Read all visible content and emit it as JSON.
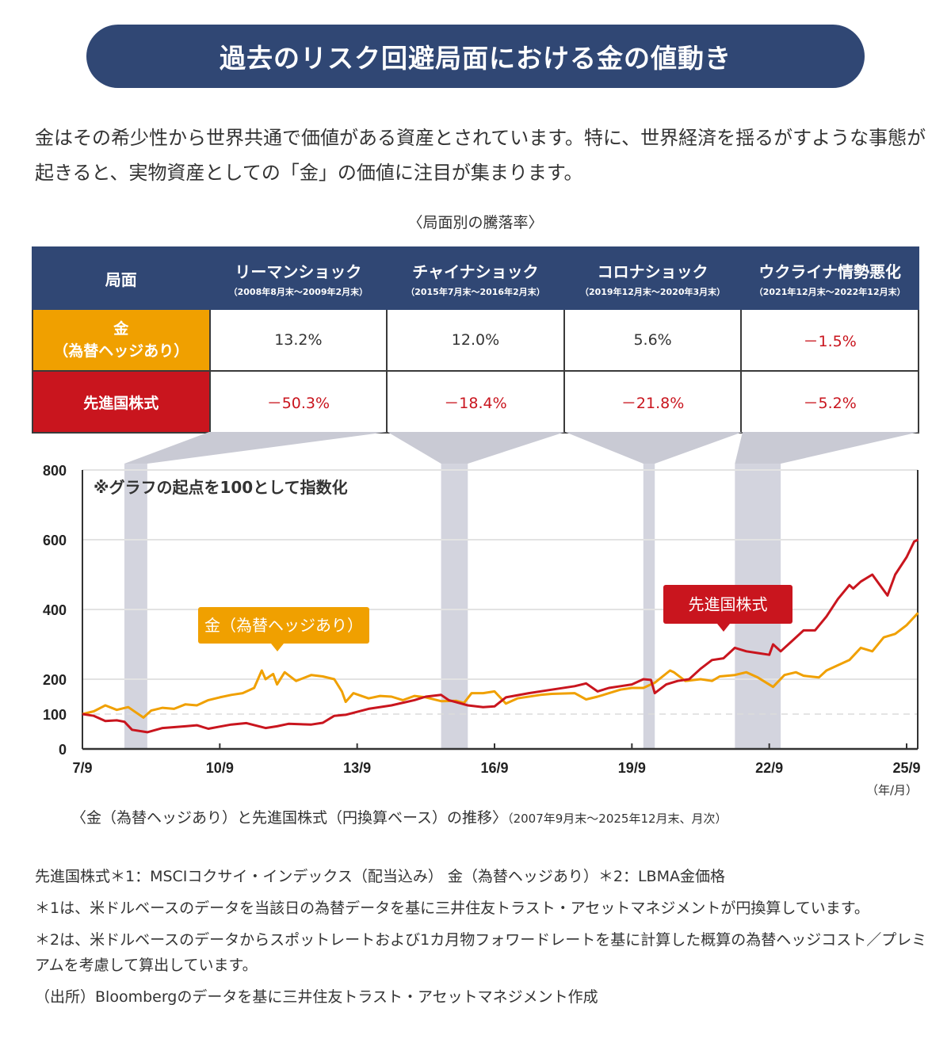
{
  "header": {
    "title": "過去のリスク回避局面における金の値動き"
  },
  "intro": {
    "text": "金はその希少性から世界共通で価値がある資産とされています。特に、世界経済を揺るがすような事態が起きると、実物資産としての「金」の価値に注目が集まります。"
  },
  "table": {
    "caption": "〈局面別の騰落率〉",
    "corner_label": "局面",
    "phases": [
      {
        "name": "リーマンショック",
        "period": "（2008年8月末～2009年2月末）"
      },
      {
        "name": "チャイナショック",
        "period": "（2015年7月末～2016年2月末）"
      },
      {
        "name": "コロナショック",
        "period": "（2019年12月末～2020年3月末）"
      },
      {
        "name": "ウクライナ情勢悪化",
        "period": "（2021年12月末～2022年12月末）"
      }
    ],
    "rows": [
      {
        "label_line1": "金",
        "label_line2": "（為替ヘッジあり）",
        "color": "#f0a000",
        "values": [
          "13.2%",
          "12.0%",
          "5.6%",
          "－1.5%"
        ],
        "negative": [
          false,
          false,
          false,
          true
        ]
      },
      {
        "label_line1": "先進国株式",
        "label_line2": "",
        "color": "#c9151e",
        "values": [
          "－50.3%",
          "－18.4%",
          "－21.8%",
          "－5.2%"
        ],
        "negative": [
          true,
          true,
          true,
          true
        ]
      }
    ]
  },
  "chart_data": {
    "type": "line",
    "title": "〈金（為替ヘッジあり）と先進国株式（円換算ベース）の推移〉",
    "subtitle": "（2007年9月末～2025年12月末、月次）",
    "annotation": "※グラフの起点を100として指数化",
    "xlabel": "（年/月）",
    "ylabel": "",
    "ylim": [
      0,
      800
    ],
    "yticks": [
      0,
      100,
      200,
      400,
      600,
      800
    ],
    "baseline": 100,
    "xlim": [
      "2007-09",
      "2025-12"
    ],
    "xticks": [
      {
        "date": "2007-09",
        "label": "7/9"
      },
      {
        "date": "2010-09",
        "label": "10/9"
      },
      {
        "date": "2013-09",
        "label": "13/9"
      },
      {
        "date": "2016-09",
        "label": "16/9"
      },
      {
        "date": "2019-09",
        "label": "19/9"
      },
      {
        "date": "2022-09",
        "label": "22/9"
      },
      {
        "date": "2025-09",
        "label": "25/9"
      }
    ],
    "grid": true,
    "shaded_periods": [
      {
        "start": "2008-08",
        "end": "2009-02",
        "label": "リーマンショック"
      },
      {
        "start": "2015-07",
        "end": "2016-02",
        "label": "チャイナショック"
      },
      {
        "start": "2019-12",
        "end": "2020-03",
        "label": "コロナショック"
      },
      {
        "start": "2021-12",
        "end": "2022-12",
        "label": "ウクライナ情勢悪化"
      }
    ],
    "series": [
      {
        "name": "金（為替ヘッジあり）",
        "color": "#f0a000",
        "label_position": "above-2011",
        "points": [
          [
            "2007-09",
            100
          ],
          [
            "2007-12",
            108
          ],
          [
            "2008-03",
            125
          ],
          [
            "2008-06",
            112
          ],
          [
            "2008-09",
            120
          ],
          [
            "2008-11",
            105
          ],
          [
            "2009-01",
            90
          ],
          [
            "2009-03",
            110
          ],
          [
            "2009-06",
            118
          ],
          [
            "2009-09",
            115
          ],
          [
            "2009-12",
            128
          ],
          [
            "2010-03",
            125
          ],
          [
            "2010-06",
            140
          ],
          [
            "2010-09",
            148
          ],
          [
            "2010-12",
            155
          ],
          [
            "2011-03",
            160
          ],
          [
            "2011-06",
            175
          ],
          [
            "2011-08",
            225
          ],
          [
            "2011-09",
            200
          ],
          [
            "2011-11",
            215
          ],
          [
            "2011-12",
            185
          ],
          [
            "2012-02",
            220
          ],
          [
            "2012-05",
            195
          ],
          [
            "2012-09",
            212
          ],
          [
            "2012-12",
            208
          ],
          [
            "2013-03",
            200
          ],
          [
            "2013-05",
            165
          ],
          [
            "2013-06",
            135
          ],
          [
            "2013-08",
            160
          ],
          [
            "2013-12",
            145
          ],
          [
            "2014-03",
            152
          ],
          [
            "2014-06",
            150
          ],
          [
            "2014-09",
            140
          ],
          [
            "2014-12",
            152
          ],
          [
            "2015-03",
            148
          ],
          [
            "2015-07",
            137
          ],
          [
            "2015-11",
            138
          ],
          [
            "2016-01",
            132
          ],
          [
            "2016-03",
            160
          ],
          [
            "2016-06",
            160
          ],
          [
            "2016-09",
            165
          ],
          [
            "2016-12",
            130
          ],
          [
            "2017-03",
            145
          ],
          [
            "2017-09",
            155
          ],
          [
            "2017-12",
            158
          ],
          [
            "2018-06",
            160
          ],
          [
            "2018-09",
            142
          ],
          [
            "2018-12",
            150
          ],
          [
            "2019-06",
            170
          ],
          [
            "2019-09",
            175
          ],
          [
            "2019-12",
            175
          ],
          [
            "2020-03",
            190
          ],
          [
            "2020-07",
            225
          ],
          [
            "2020-08",
            220
          ],
          [
            "2020-11",
            195
          ],
          [
            "2021-03",
            200
          ],
          [
            "2021-06",
            195
          ],
          [
            "2021-08",
            208
          ],
          [
            "2021-12",
            212
          ],
          [
            "2022-03",
            220
          ],
          [
            "2022-06",
            205
          ],
          [
            "2022-10",
            178
          ],
          [
            "2023-01",
            212
          ],
          [
            "2023-04",
            220
          ],
          [
            "2023-06",
            210
          ],
          [
            "2023-10",
            205
          ],
          [
            "2023-12",
            225
          ],
          [
            "2024-03",
            240
          ],
          [
            "2024-06",
            255
          ],
          [
            "2024-09",
            290
          ],
          [
            "2024-12",
            280
          ],
          [
            "2025-03",
            320
          ],
          [
            "2025-06",
            330
          ],
          [
            "2025-09",
            355
          ],
          [
            "2025-12",
            390
          ]
        ]
      },
      {
        "name": "先進国株式",
        "color": "#c9151e",
        "label_position": "above-2021",
        "points": [
          [
            "2007-09",
            100
          ],
          [
            "2007-12",
            95
          ],
          [
            "2008-03",
            80
          ],
          [
            "2008-06",
            82
          ],
          [
            "2008-08",
            78
          ],
          [
            "2008-10",
            55
          ],
          [
            "2009-02",
            48
          ],
          [
            "2009-06",
            60
          ],
          [
            "2009-12",
            65
          ],
          [
            "2010-03",
            68
          ],
          [
            "2010-06",
            58
          ],
          [
            "2010-09",
            64
          ],
          [
            "2010-12",
            70
          ],
          [
            "2011-04",
            74
          ],
          [
            "2011-09",
            60
          ],
          [
            "2011-12",
            65
          ],
          [
            "2012-03",
            72
          ],
          [
            "2012-09",
            70
          ],
          [
            "2012-12",
            75
          ],
          [
            "2013-03",
            95
          ],
          [
            "2013-06",
            98
          ],
          [
            "2013-12",
            115
          ],
          [
            "2014-06",
            125
          ],
          [
            "2014-12",
            140
          ],
          [
            "2015-03",
            150
          ],
          [
            "2015-07",
            155
          ],
          [
            "2015-09",
            140
          ],
          [
            "2016-02",
            125
          ],
          [
            "2016-06",
            120
          ],
          [
            "2016-09",
            122
          ],
          [
            "2016-12",
            148
          ],
          [
            "2017-06",
            160
          ],
          [
            "2017-12",
            170
          ],
          [
            "2018-06",
            180
          ],
          [
            "2018-09",
            188
          ],
          [
            "2018-12",
            165
          ],
          [
            "2019-03",
            175
          ],
          [
            "2019-06",
            180
          ],
          [
            "2019-09",
            185
          ],
          [
            "2019-12",
            200
          ],
          [
            "2020-02",
            198
          ],
          [
            "2020-03",
            160
          ],
          [
            "2020-06",
            185
          ],
          [
            "2020-09",
            195
          ],
          [
            "2020-12",
            200
          ],
          [
            "2021-03",
            230
          ],
          [
            "2021-06",
            255
          ],
          [
            "2021-09",
            260
          ],
          [
            "2021-12",
            290
          ],
          [
            "2022-03",
            280
          ],
          [
            "2022-06",
            275
          ],
          [
            "2022-09",
            270
          ],
          [
            "2022-10",
            300
          ],
          [
            "2022-12",
            280
          ],
          [
            "2023-03",
            310
          ],
          [
            "2023-06",
            340
          ],
          [
            "2023-09",
            340
          ],
          [
            "2023-12",
            380
          ],
          [
            "2024-03",
            430
          ],
          [
            "2024-06",
            470
          ],
          [
            "2024-07",
            460
          ],
          [
            "2024-09",
            480
          ],
          [
            "2024-12",
            500
          ],
          [
            "2025-02",
            470
          ],
          [
            "2025-04",
            440
          ],
          [
            "2025-06",
            500
          ],
          [
            "2025-09",
            550
          ],
          [
            "2025-11",
            595
          ],
          [
            "2025-12",
            600
          ]
        ]
      }
    ]
  },
  "notes": {
    "line1": "先進国株式＊1：MSCIコクサイ・インデックス（配当込み） 金（為替ヘッジあり）＊2：LBMA金価格",
    "line2": "＊1は、米ドルベースのデータを当該日の為替データを基に三井住友トラスト・アセットマネジメントが円換算しています。",
    "line3": "＊2は、米ドルベースのデータからスポットレートおよび1カ月物フォワードレートを基に計算した概算の為替ヘッジコスト／プレミアムを考慮して算出しています。",
    "source": "（出所）Bloombergのデータを基に三井住友トラスト・アセットマネジメント作成"
  }
}
